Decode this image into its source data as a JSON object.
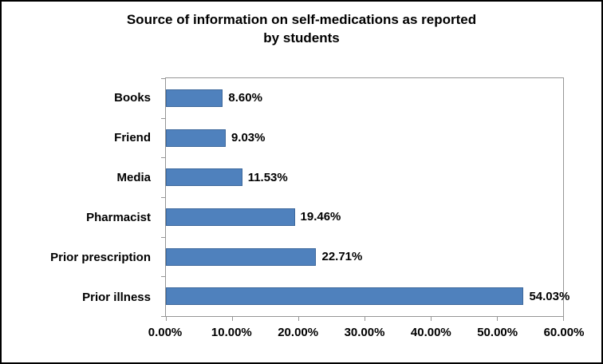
{
  "window": {
    "background_color": "#ffffff",
    "border_color": "#000000"
  },
  "chart_data": {
    "type": "bar",
    "orientation": "horizontal",
    "title": "Source of information on self-medications as reported by students",
    "title_lines": [
      "Source of information on self-medications as reported",
      "by students"
    ],
    "categories": [
      "Books",
      "Friend",
      "Media",
      "Pharmacist",
      "Prior prescription",
      "Prior illness"
    ],
    "values": [
      8.6,
      9.03,
      11.53,
      19.46,
      22.71,
      54.03
    ],
    "data_labels": [
      "8.60%",
      "9.03%",
      "11.53%",
      "19.46%",
      "22.71%",
      "54.03%"
    ],
    "xlabel": "",
    "ylabel": "",
    "xlim": [
      0,
      60
    ],
    "xticks": [
      0,
      10,
      20,
      30,
      40,
      50,
      60
    ],
    "xtick_labels": [
      "0.00%",
      "10.00%",
      "20.00%",
      "30.00%",
      "40.00%",
      "50.00%",
      "60.00%"
    ],
    "grid": false,
    "legend": false,
    "bar_color": "#4f81bd",
    "bar_border_color": "#3c679b",
    "axis_color": "#969696"
  }
}
